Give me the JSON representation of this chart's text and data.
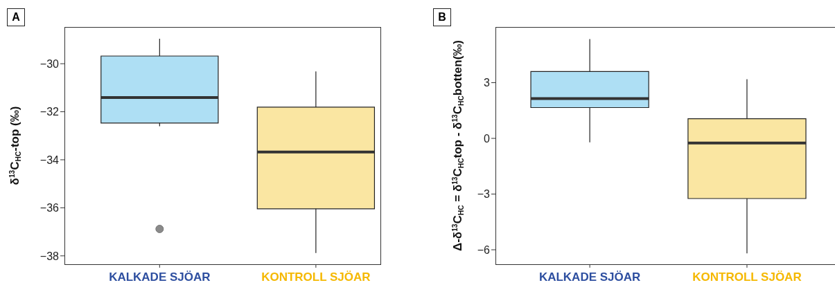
{
  "chart_data": [
    {
      "type": "box",
      "title": "A",
      "ylabel": "δ$^{13}$C$_{HC}$-top (‰)",
      "categories": [
        "KALKADE SJÖAR",
        "KONTROLL SJÖAR"
      ],
      "colors": [
        "#aedff4",
        "#fae6a2"
      ],
      "boxes": [
        {
          "low": -32.6,
          "q1": -32.47,
          "median": -31.41,
          "q3": -29.68,
          "high": -28.96,
          "outliers": [
            -36.88
          ]
        },
        {
          "low": -37.88,
          "q1": -36.04,
          "median": -33.68,
          "q3": -31.81,
          "high": -30.32
        }
      ],
      "ylim": [
        -38.35,
        -28.47
      ],
      "yticks": [
        {
          "value": -30,
          "label": "−30"
        },
        {
          "value": -32,
          "label": "−32"
        },
        {
          "value": -34,
          "label": "−34"
        },
        {
          "value": -36,
          "label": "−36"
        },
        {
          "value": -38,
          "label": "−38"
        }
      ]
    },
    {
      "type": "box",
      "title": "B",
      "ylabel": "Δ-δ$^{13}$C$_{HC}$ = δ$^{13}$C$_{HC}$top - δ$^{13}$C$_{HC}$botten(‰)",
      "categories": [
        "KALKADE SJÖAR",
        "KONTROLL SJÖAR"
      ],
      "colors": [
        "#aedff4",
        "#fae6a2"
      ],
      "boxes": [
        {
          "low": -0.21,
          "q1": 1.66,
          "median": 2.14,
          "q3": 3.6,
          "high": 5.35
        },
        {
          "low": -6.19,
          "q1": -3.24,
          "median": -0.25,
          "q3": 1.06,
          "high": 3.19
        }
      ],
      "ylim": [
        -6.78,
        6.0
      ],
      "yticks": [
        3,
        0,
        {
          "value": -3,
          "label": "−3"
        },
        {
          "value": -6,
          "label": "−6"
        }
      ]
    }
  ]
}
